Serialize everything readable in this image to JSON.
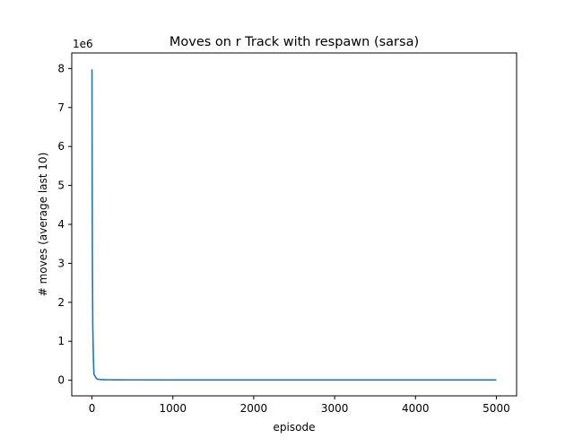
{
  "chart_data": {
    "type": "line",
    "title": "Moves on r Track with respawn (sarsa)",
    "xlabel": "episode",
    "ylabel": "# moves (average last 10)",
    "y_offset_label": "1e6",
    "xlim": [
      -250,
      5250
    ],
    "ylim": [
      -400000,
      8400000
    ],
    "xticks": [
      0,
      1000,
      2000,
      3000,
      4000,
      5000
    ],
    "xtick_labels": [
      "0",
      "1000",
      "2000",
      "3000",
      "4000",
      "5000"
    ],
    "yticks": [
      0,
      1000000,
      2000000,
      3000000,
      4000000,
      5000000,
      6000000,
      7000000,
      8000000
    ],
    "ytick_labels": [
      "0",
      "1",
      "2",
      "3",
      "4",
      "5",
      "6",
      "7",
      "8"
    ],
    "grid": false,
    "legend": "none",
    "series": [
      {
        "color": "#1f77b4",
        "x": [
          0,
          2,
          5,
          10,
          15,
          20,
          25,
          30,
          40,
          50,
          60,
          80,
          100,
          150,
          200,
          300,
          500,
          1000,
          2000,
          3000,
          4000,
          5000
        ],
        "y": [
          7980000,
          5600000,
          3200000,
          1400000,
          800000,
          400000,
          150000,
          130000,
          100000,
          60000,
          35000,
          25000,
          18000,
          14000,
          12000,
          10000,
          9000,
          8000,
          7500,
          7000,
          7000,
          7000
        ]
      }
    ]
  }
}
